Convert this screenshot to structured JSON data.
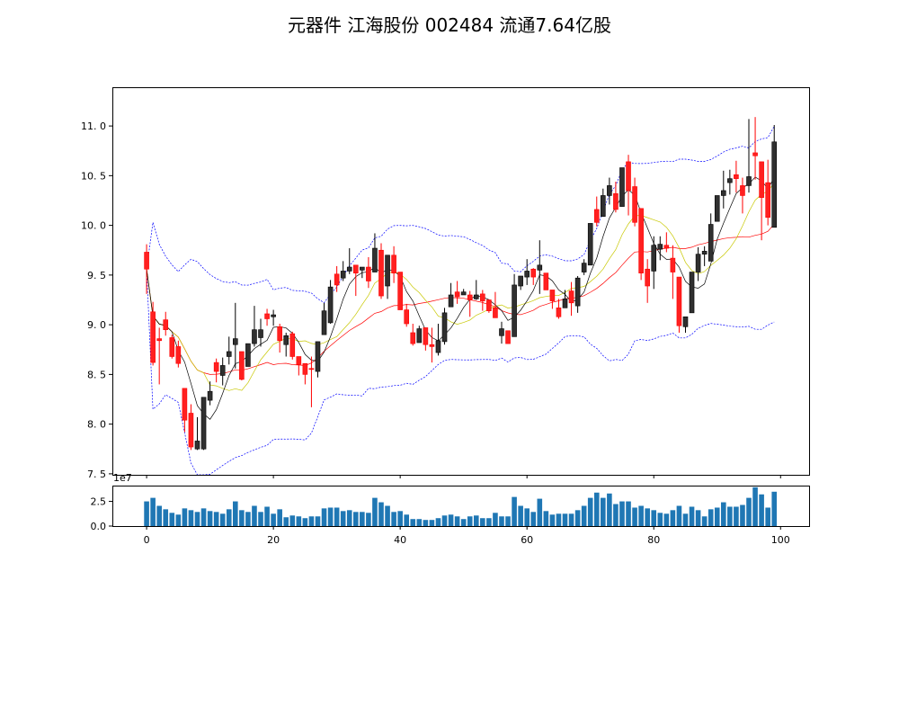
{
  "title": "元器件 江海股份 002484 流通7.64亿股",
  "chart_data": [
    {
      "type": "candlestick",
      "panel": "price",
      "x": "index 0-99",
      "xlim": [
        -5.4,
        104.5
      ],
      "ylim": [
        7.49,
        11.39
      ],
      "yticks": [
        "7.5",
        "8.0",
        "8.5",
        "9.0",
        "9.5",
        "10.0",
        "10.5",
        "11.0"
      ],
      "colors": {
        "down": "#ff0000",
        "up": "#000000",
        "ma5": "#000000",
        "ma10": "#c8c800",
        "ma20": "#ff0000",
        "boll": "#0000ff"
      },
      "overlays": [
        "MA5",
        "MA10",
        "MA20",
        "Bollinger upper",
        "Bollinger lower"
      ],
      "ohlc": [
        [
          9.73,
          9.81,
          9.31,
          9.56
        ],
        [
          9.13,
          9.23,
          8.59,
          8.62
        ],
        [
          8.86,
          8.97,
          8.4,
          8.84
        ],
        [
          9.05,
          9.13,
          8.89,
          8.95
        ],
        [
          8.87,
          8.9,
          8.66,
          8.68
        ],
        [
          8.78,
          8.84,
          8.57,
          8.61
        ],
        [
          8.36,
          8.36,
          7.92,
          8.04
        ],
        [
          8.11,
          8.2,
          7.74,
          7.77
        ],
        [
          7.75,
          8.07,
          7.74,
          7.83
        ],
        [
          7.75,
          8.27,
          7.74,
          8.27
        ],
        [
          8.24,
          8.43,
          8.19,
          8.33
        ],
        [
          8.62,
          8.66,
          8.42,
          8.53
        ],
        [
          8.49,
          8.67,
          8.39,
          8.59
        ],
        [
          8.68,
          8.88,
          8.6,
          8.73
        ],
        [
          8.8,
          9.22,
          8.56,
          8.86
        ],
        [
          8.73,
          8.73,
          8.44,
          8.45
        ],
        [
          8.58,
          8.81,
          8.58,
          8.81
        ],
        [
          8.81,
          9.19,
          8.78,
          8.95
        ],
        [
          8.87,
          9.06,
          8.78,
          8.95
        ],
        [
          9.11,
          9.16,
          8.99,
          9.06
        ],
        [
          9.08,
          9.15,
          8.99,
          9.1
        ],
        [
          8.98,
          9.01,
          8.72,
          8.84
        ],
        [
          8.8,
          8.92,
          8.68,
          8.89
        ],
        [
          8.91,
          8.93,
          8.65,
          8.68
        ],
        [
          8.68,
          8.68,
          8.49,
          8.6
        ],
        [
          8.61,
          8.61,
          8.4,
          8.5
        ],
        [
          8.56,
          8.68,
          8.17,
          8.55
        ],
        [
          8.53,
          8.83,
          8.47,
          8.83
        ],
        [
          8.9,
          9.22,
          8.9,
          9.14
        ],
        [
          9.02,
          9.45,
          9.01,
          9.38
        ],
        [
          9.51,
          9.59,
          9.33,
          9.4
        ],
        [
          9.47,
          9.64,
          9.44,
          9.54
        ],
        [
          9.54,
          9.77,
          9.51,
          9.58
        ],
        [
          9.6,
          9.6,
          9.29,
          9.52
        ],
        [
          9.55,
          9.58,
          9.47,
          9.58
        ],
        [
          9.58,
          9.68,
          9.37,
          9.44
        ],
        [
          9.53,
          9.92,
          9.53,
          9.77
        ],
        [
          9.75,
          9.82,
          9.26,
          9.29
        ],
        [
          9.39,
          9.7,
          9.26,
          9.7
        ],
        [
          9.7,
          9.79,
          9.42,
          9.52
        ],
        [
          9.53,
          9.53,
          9.15,
          9.15
        ],
        [
          9.15,
          9.21,
          8.98,
          9.01
        ],
        [
          8.92,
          9.01,
          8.79,
          8.81
        ],
        [
          8.82,
          8.99,
          8.82,
          8.96
        ],
        [
          8.97,
          8.97,
          8.74,
          8.8
        ],
        [
          8.8,
          8.97,
          8.62,
          8.78
        ],
        [
          8.72,
          9.01,
          8.69,
          8.84
        ],
        [
          8.83,
          9.17,
          8.8,
          9.12
        ],
        [
          9.18,
          9.42,
          9.18,
          9.3
        ],
        [
          9.33,
          9.44,
          9.21,
          9.28
        ],
        [
          9.3,
          9.36,
          9.3,
          9.33
        ],
        [
          9.3,
          9.34,
          9.08,
          9.25
        ],
        [
          9.26,
          9.45,
          9.25,
          9.3
        ],
        [
          9.31,
          9.35,
          9.14,
          9.24
        ],
        [
          9.25,
          9.25,
          9.12,
          9.14
        ],
        [
          9.17,
          9.33,
          9.07,
          9.07
        ],
        [
          8.89,
          9.03,
          8.81,
          8.96
        ],
        [
          8.94,
          8.94,
          8.81,
          8.81
        ],
        [
          8.88,
          9.51,
          8.88,
          9.4
        ],
        [
          9.39,
          9.49,
          9.35,
          9.49
        ],
        [
          9.48,
          9.66,
          9.4,
          9.54
        ],
        [
          9.56,
          9.57,
          9.4,
          9.48
        ],
        [
          9.55,
          9.85,
          9.31,
          9.6
        ],
        [
          9.52,
          9.52,
          9.35,
          9.35
        ],
        [
          9.35,
          9.35,
          9.16,
          9.24
        ],
        [
          9.17,
          9.26,
          9.06,
          9.08
        ],
        [
          9.17,
          9.35,
          9.17,
          9.26
        ],
        [
          9.34,
          9.43,
          9.09,
          9.22
        ],
        [
          9.19,
          9.49,
          9.12,
          9.47
        ],
        [
          9.53,
          9.66,
          9.5,
          9.62
        ],
        [
          9.6,
          10.02,
          9.6,
          10.02
        ],
        [
          10.16,
          10.29,
          9.99,
          10.03
        ],
        [
          10.09,
          10.37,
          10.09,
          10.3
        ],
        [
          10.3,
          10.48,
          10.21,
          10.4
        ],
        [
          10.32,
          10.44,
          10.13,
          10.16
        ],
        [
          10.19,
          10.58,
          10.19,
          10.58
        ],
        [
          10.64,
          10.71,
          10.1,
          10.35
        ],
        [
          10.39,
          10.48,
          9.99,
          10.03
        ],
        [
          10.17,
          10.17,
          9.45,
          9.52
        ],
        [
          9.56,
          9.66,
          9.22,
          9.39
        ],
        [
          9.54,
          9.89,
          9.36,
          9.8
        ],
        [
          9.76,
          9.89,
          9.65,
          9.81
        ],
        [
          9.8,
          9.93,
          9.73,
          9.77
        ],
        [
          9.67,
          9.8,
          9.26,
          9.53
        ],
        [
          9.48,
          9.48,
          8.92,
          8.99
        ],
        [
          8.98,
          9.08,
          8.92,
          9.08
        ],
        [
          9.12,
          9.53,
          9.12,
          9.53
        ],
        [
          9.53,
          9.78,
          9.44,
          9.71
        ],
        [
          9.71,
          9.79,
          9.59,
          9.74
        ],
        [
          9.64,
          10.12,
          9.64,
          10.01
        ],
        [
          10.04,
          10.3,
          10.04,
          10.3
        ],
        [
          10.3,
          10.55,
          10.17,
          10.35
        ],
        [
          10.43,
          10.56,
          10.31,
          10.47
        ],
        [
          10.51,
          10.65,
          10.33,
          10.47
        ],
        [
          10.4,
          10.48,
          10.12,
          10.3
        ],
        [
          10.4,
          11.07,
          10.33,
          10.49
        ],
        [
          10.73,
          11.09,
          10.46,
          10.7
        ],
        [
          10.64,
          10.64,
          9.85,
          10.28
        ],
        [
          10.43,
          10.66,
          10.0,
          10.08
        ],
        [
          9.98,
          11.01,
          9.98,
          10.84
        ]
      ]
    },
    {
      "type": "bar",
      "panel": "volume",
      "offset_text": "1e7",
      "ylim": [
        0,
        4.1
      ],
      "yticks": [
        "0.0",
        "2.5"
      ],
      "xticks": [
        "0",
        "20",
        "40",
        "60",
        "80",
        "100"
      ],
      "color": "#1f77b4",
      "values": [
        2.5,
        2.86,
        2.05,
        1.7,
        1.34,
        1.16,
        1.79,
        1.61,
        1.43,
        1.79,
        1.52,
        1.43,
        1.25,
        1.7,
        2.5,
        1.61,
        1.43,
        2.05,
        1.43,
        1.96,
        1.25,
        1.7,
        0.89,
        1.07,
        0.98,
        0.8,
        0.98,
        0.98,
        1.79,
        1.87,
        1.87,
        1.52,
        1.61,
        1.43,
        1.43,
        1.34,
        2.86,
        2.41,
        2.05,
        1.43,
        1.52,
        1.16,
        0.71,
        0.71,
        0.62,
        0.62,
        0.8,
        1.07,
        1.16,
        0.98,
        0.71,
        0.98,
        1.07,
        0.8,
        0.8,
        1.34,
        0.98,
        0.98,
        2.95,
        2.05,
        1.79,
        1.43,
        2.77,
        1.52,
        1.16,
        1.25,
        1.25,
        1.25,
        1.61,
        2.05,
        2.86,
        3.39,
        2.86,
        3.3,
        2.23,
        2.5,
        2.5,
        1.87,
        2.05,
        1.79,
        1.61,
        1.34,
        1.25,
        1.61,
        2.05,
        1.25,
        1.96,
        1.61,
        0.98,
        1.7,
        1.87,
        2.41,
        1.96,
        1.96,
        2.14,
        2.86,
        3.93,
        3.21,
        1.87,
        3.48
      ]
    }
  ]
}
